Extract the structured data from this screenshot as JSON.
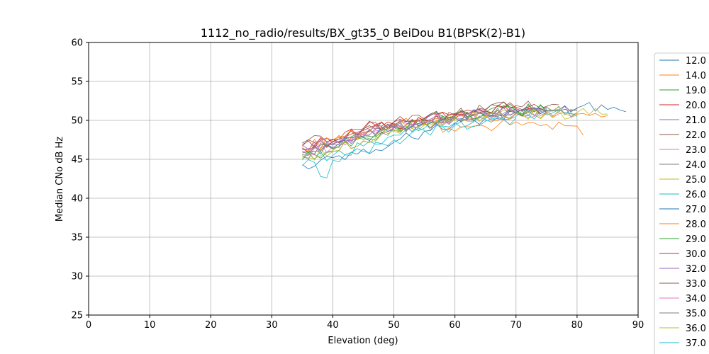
{
  "chart_data": {
    "type": "line",
    "title": "1112_no_radio/results/BX_gt35_0 BeiDou B1(BPSK(2)-B1)",
    "xlabel": "Elevation (deg)",
    "ylabel": "Median CNo dB Hz",
    "xlim": [
      0,
      90
    ],
    "ylim": [
      25,
      60
    ],
    "xticks": [
      "0",
      "10",
      "20",
      "30",
      "40",
      "50",
      "60",
      "70",
      "80",
      "90"
    ],
    "yticks": [
      "25",
      "30",
      "35",
      "40",
      "45",
      "50",
      "55",
      "60"
    ],
    "grid": true,
    "legend_position": "right, outside plot (clipped)",
    "series": [
      {
        "name": "12.0",
        "color": "#1f77b4",
        "x": [
          35,
          40,
          45,
          50,
          55,
          60,
          65,
          70,
          75,
          80,
          85,
          88
        ],
        "y": [
          44.3,
          45.2,
          46.3,
          47.2,
          48.6,
          49.6,
          50.3,
          50.9,
          51.3,
          51.6,
          51.4,
          51.1
        ]
      },
      {
        "name": "14.0",
        "color": "#ff7f0e",
        "x": [
          35,
          40,
          45,
          50,
          55,
          60,
          65,
          70,
          75,
          80,
          85
        ],
        "y": [
          46.0,
          47.2,
          48.5,
          49.5,
          49.9,
          50.4,
          50.6,
          50.9,
          51.0,
          50.8,
          50.6
        ]
      },
      {
        "name": "19.0",
        "color": "#2ca02c",
        "x": [
          35,
          40,
          45,
          50,
          55,
          60,
          65,
          70,
          75
        ],
        "y": [
          45.1,
          46.0,
          47.6,
          49.2,
          50.1,
          50.6,
          51.1,
          51.4,
          51.2
        ]
      },
      {
        "name": "20.0",
        "color": "#d62728",
        "x": [
          35,
          40,
          45,
          50,
          55,
          60,
          65,
          70,
          75
        ],
        "y": [
          46.4,
          47.3,
          48.7,
          49.5,
          50.0,
          50.8,
          51.2,
          51.5,
          51.4
        ]
      },
      {
        "name": "21.0",
        "color": "#9467bd",
        "x": [
          35,
          40,
          45,
          50,
          55,
          60,
          65,
          70,
          75,
          80
        ],
        "y": [
          46.8,
          47.0,
          48.0,
          49.3,
          49.7,
          50.5,
          50.9,
          51.1,
          51.3,
          51.0
        ]
      },
      {
        "name": "22.0",
        "color": "#8c564b",
        "x": [
          35,
          40,
          45,
          50,
          55,
          60,
          65,
          70,
          75,
          80
        ],
        "y": [
          47.1,
          47.6,
          48.9,
          49.6,
          49.4,
          50.9,
          51.3,
          51.9,
          51.7,
          51.5
        ]
      },
      {
        "name": "23.0",
        "color": "#e377c2",
        "x": [
          35,
          40,
          45,
          50,
          55,
          60,
          65,
          70,
          75
        ],
        "y": [
          46.2,
          46.8,
          48.2,
          49.1,
          49.8,
          50.3,
          50.7,
          51.0,
          51.1
        ]
      },
      {
        "name": "24.0",
        "color": "#7f7f7f",
        "x": [
          35,
          40,
          45,
          50,
          55,
          60,
          65,
          70,
          75,
          80
        ],
        "y": [
          45.6,
          46.9,
          47.9,
          49.0,
          49.6,
          50.2,
          50.8,
          51.0,
          51.3,
          51.2
        ]
      },
      {
        "name": "25.0",
        "color": "#bcbd22",
        "x": [
          35,
          40,
          45,
          50,
          55,
          60,
          65,
          70,
          75,
          80,
          85
        ],
        "y": [
          45.3,
          46.1,
          47.3,
          48.6,
          49.4,
          50.0,
          50.4,
          50.9,
          51.0,
          51.0,
          50.8
        ]
      },
      {
        "name": "26.0",
        "color": "#17becf",
        "x": [
          35,
          40,
          45,
          50,
          55,
          60,
          65,
          70,
          75,
          80
        ],
        "y": [
          44.9,
          45.5,
          46.7,
          48.1,
          49.0,
          49.7,
          50.1,
          50.5,
          50.7,
          50.5
        ]
      },
      {
        "name": "27.0",
        "color": "#1f77b4",
        "x": [
          35,
          40,
          45,
          50,
          55,
          60,
          65,
          70,
          75
        ],
        "y": [
          45.8,
          46.5,
          47.8,
          48.8,
          49.7,
          50.3,
          50.6,
          51.0,
          51.1
        ]
      },
      {
        "name": "28.0",
        "color": "#ff7f0e",
        "x": [
          35,
          40,
          45,
          50,
          55,
          60,
          65,
          70,
          75,
          79,
          81
        ],
        "y": [
          46.5,
          47.5,
          48.3,
          49.3,
          49.8,
          48.6,
          49.2,
          49.8,
          49.5,
          49.3,
          48.1
        ]
      },
      {
        "name": "29.0",
        "color": "#2ca02c",
        "x": [
          35,
          40,
          45,
          50,
          55,
          60,
          65,
          70,
          75
        ],
        "y": [
          46.0,
          46.4,
          47.8,
          49.1,
          50.2,
          50.5,
          51.0,
          51.3,
          51.5
        ]
      },
      {
        "name": "30.0",
        "color": "#d62728",
        "x": [
          35,
          40,
          45,
          50,
          55,
          60,
          65,
          70
        ],
        "y": [
          46.9,
          47.5,
          49.0,
          49.8,
          50.3,
          50.8,
          51.2,
          51.6
        ]
      },
      {
        "name": "32.0",
        "color": "#9467bd",
        "x": [
          35,
          40,
          45,
          50,
          55,
          60,
          65,
          70,
          75
        ],
        "y": [
          46.3,
          46.9,
          48.4,
          49.2,
          50.0,
          50.6,
          51.0,
          51.2,
          51.0
        ]
      },
      {
        "name": "33.0",
        "color": "#8c564b",
        "x": [
          35,
          40,
          45,
          50,
          55,
          60,
          65,
          70,
          75,
          77
        ],
        "y": [
          46.7,
          47.3,
          48.8,
          49.8,
          50.2,
          50.7,
          51.4,
          51.7,
          51.8,
          52.0
        ]
      },
      {
        "name": "34.0",
        "color": "#e377c2",
        "x": [
          35,
          40,
          45,
          50,
          55,
          60,
          65,
          70
        ],
        "y": [
          46.0,
          46.6,
          48.1,
          49.0,
          49.6,
          50.4,
          50.8,
          51.0
        ]
      },
      {
        "name": "35.0",
        "color": "#7f7f7f",
        "x": [
          35,
          40,
          45,
          50,
          55,
          60,
          65,
          70,
          75
        ],
        "y": [
          45.5,
          46.3,
          47.9,
          49.0,
          49.7,
          50.3,
          50.6,
          50.9,
          51.0
        ]
      },
      {
        "name": "36.0",
        "color": "#bcbd22",
        "x": [
          35,
          40,
          45,
          50,
          55,
          60,
          65,
          70,
          75,
          80
        ],
        "y": [
          45.1,
          46.0,
          47.4,
          48.7,
          49.5,
          50.2,
          50.5,
          50.8,
          50.9,
          50.7
        ]
      },
      {
        "name": "37.0",
        "color": "#17becf",
        "x": [
          35,
          37,
          39,
          40,
          45,
          50,
          55,
          60,
          65,
          70
        ],
        "y": [
          44.2,
          44.6,
          42.6,
          44.9,
          46.0,
          47.5,
          48.7,
          49.4,
          49.9,
          50.3
        ]
      }
    ]
  }
}
